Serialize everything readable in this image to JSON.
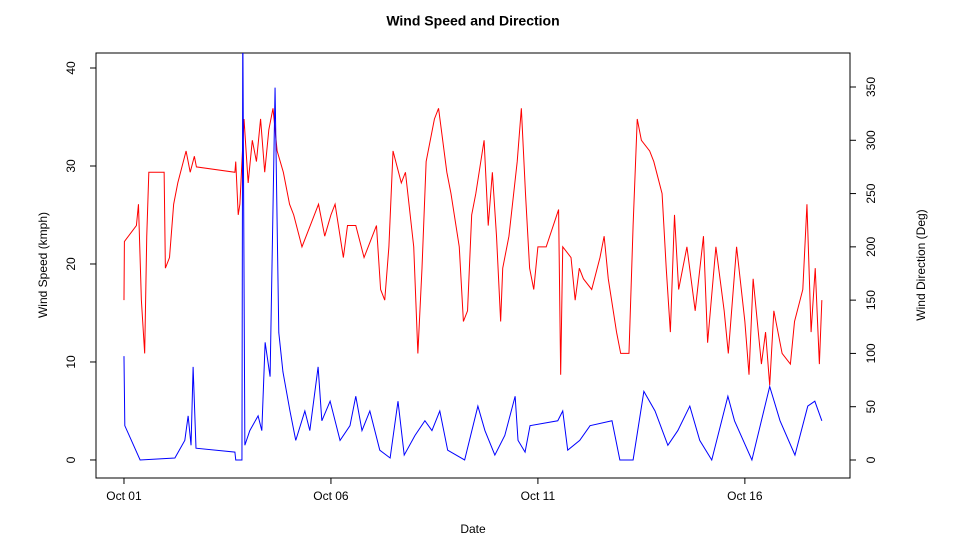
{
  "chart_data": {
    "type": "line",
    "title": "Wind Speed and Direction",
    "x_label": "Date",
    "y_label": "Wind Speed (kmph)",
    "y2_label": "Wind Direction (Deg)",
    "xlim": [
      0.324,
      18.54
    ],
    "xticks": [
      {
        "value": 1,
        "label": "Oct 01"
      },
      {
        "value": 6,
        "label": "Oct 06"
      },
      {
        "value": 11,
        "label": "Oct 11"
      },
      {
        "value": 16,
        "label": "Oct 16"
      }
    ],
    "ylim": [
      -1.84,
      41.53
    ],
    "yticks": [
      0,
      10,
      20,
      30,
      40
    ],
    "y2lim": [
      -16.9,
      381.9
    ],
    "y2ticks": [
      0,
      50,
      100,
      150,
      200,
      250,
      300,
      350
    ],
    "series": [
      {
        "color": "#ff0000",
        "axis": "y2",
        "x": [
          1.0,
          1.01,
          1.3,
          1.35,
          1.42,
          1.5,
          1.55,
          1.6,
          1.97,
          2.0,
          2.1,
          2.2,
          2.3,
          2.5,
          2.6,
          2.7,
          2.75,
          3.68,
          3.7,
          3.76,
          3.8,
          3.9,
          4.0,
          4.1,
          4.2,
          4.3,
          4.4,
          4.5,
          4.6,
          4.7,
          4.85,
          5.0,
          5.1,
          5.3,
          5.5,
          5.7,
          5.85,
          6.0,
          6.1,
          6.3,
          6.4,
          6.6,
          6.8,
          7.0,
          7.1,
          7.2,
          7.3,
          7.4,
          7.5,
          7.7,
          7.8,
          8.0,
          8.1,
          8.2,
          8.3,
          8.5,
          8.6,
          8.8,
          8.9,
          9.1,
          9.2,
          9.3,
          9.4,
          9.5,
          9.7,
          9.8,
          9.9,
          10.0,
          10.1,
          10.15,
          10.3,
          10.5,
          10.6,
          10.7,
          10.8,
          10.9,
          11.0,
          11.2,
          11.5,
          11.55,
          11.6,
          11.8,
          11.9,
          12.0,
          12.1,
          12.3,
          12.5,
          12.6,
          12.7,
          12.9,
          13.0,
          13.2,
          13.3,
          13.4,
          13.5,
          13.7,
          13.8,
          14.0,
          14.1,
          14.2,
          14.3,
          14.4,
          14.6,
          14.8,
          15.0,
          15.1,
          15.3,
          15.5,
          15.6,
          15.8,
          16.0,
          16.1,
          16.2,
          16.4,
          16.5,
          16.6,
          16.7,
          16.9,
          17.1,
          17.2,
          17.4,
          17.5,
          17.6,
          17.7,
          17.8,
          17.86
        ],
        "values": [
          150,
          205,
          220,
          240,
          150,
          100,
          210,
          270,
          270,
          180,
          190,
          240,
          260,
          290,
          270,
          285,
          275,
          270,
          280,
          230,
          240,
          320,
          260,
          300,
          280,
          320,
          270,
          310,
          330,
          290,
          270,
          240,
          230,
          200,
          220,
          240,
          210,
          230,
          240,
          190,
          220,
          220,
          190,
          210,
          220,
          160,
          150,
          200,
          290,
          260,
          270,
          200,
          100,
          180,
          280,
          320,
          330,
          270,
          250,
          200,
          130,
          140,
          230,
          250,
          300,
          220,
          270,
          210,
          130,
          180,
          210,
          280,
          330,
          250,
          180,
          160,
          200,
          200,
          235,
          80,
          200,
          190,
          150,
          180,
          170,
          160,
          190,
          210,
          170,
          120,
          100,
          100,
          220,
          320,
          300,
          290,
          280,
          250,
          180,
          120,
          230,
          160,
          200,
          140,
          210,
          110,
          200,
          140,
          100,
          200,
          130,
          80,
          170,
          90,
          120,
          70,
          140,
          100,
          90,
          130,
          160,
          240,
          120,
          180,
          90,
          150
        ]
      },
      {
        "color": "#0000ff",
        "axis": "y",
        "x": [
          1.0,
          1.02,
          1.39,
          2.23,
          2.47,
          2.55,
          2.62,
          2.67,
          2.74,
          3.68,
          3.7,
          3.85,
          3.87,
          3.92,
          4.04,
          4.24,
          4.33,
          4.41,
          4.53,
          4.65,
          4.74,
          4.84,
          5.01,
          5.15,
          5.37,
          5.49,
          5.69,
          5.78,
          5.98,
          6.22,
          6.46,
          6.6,
          6.75,
          6.94,
          7.18,
          7.43,
          7.62,
          7.77,
          8.03,
          8.27,
          8.44,
          8.63,
          8.82,
          9.23,
          9.55,
          9.72,
          9.96,
          10.2,
          10.45,
          10.52,
          10.69,
          10.81,
          11.48,
          11.6,
          11.72,
          12.01,
          12.26,
          12.79,
          12.98,
          13.3,
          13.56,
          13.83,
          14.14,
          14.38,
          14.67,
          14.91,
          15.2,
          15.59,
          15.75,
          16.17,
          16.6,
          16.85,
          17.21,
          17.52,
          17.69,
          17.86
        ],
        "values": [
          10.6,
          3.5,
          0,
          0.2,
          2,
          4.5,
          1.5,
          9.5,
          1.2,
          0.8,
          0,
          0,
          45,
          1.5,
          3,
          4.5,
          3,
          12,
          8.5,
          38,
          13,
          9,
          5,
          2,
          5,
          3,
          9.5,
          4,
          6,
          2,
          3.5,
          6.5,
          3,
          5,
          1,
          0.2,
          6,
          0.5,
          2.5,
          4,
          3,
          5,
          1,
          0,
          5.5,
          3,
          0.5,
          2.5,
          6.5,
          2,
          0.8,
          3.5,
          4,
          5,
          1,
          2,
          3.5,
          4,
          0,
          0,
          7,
          5,
          1.5,
          3,
          5.5,
          2,
          0,
          6.5,
          4,
          0,
          7.5,
          4,
          0.5,
          5.5,
          6,
          4
        ]
      }
    ]
  }
}
